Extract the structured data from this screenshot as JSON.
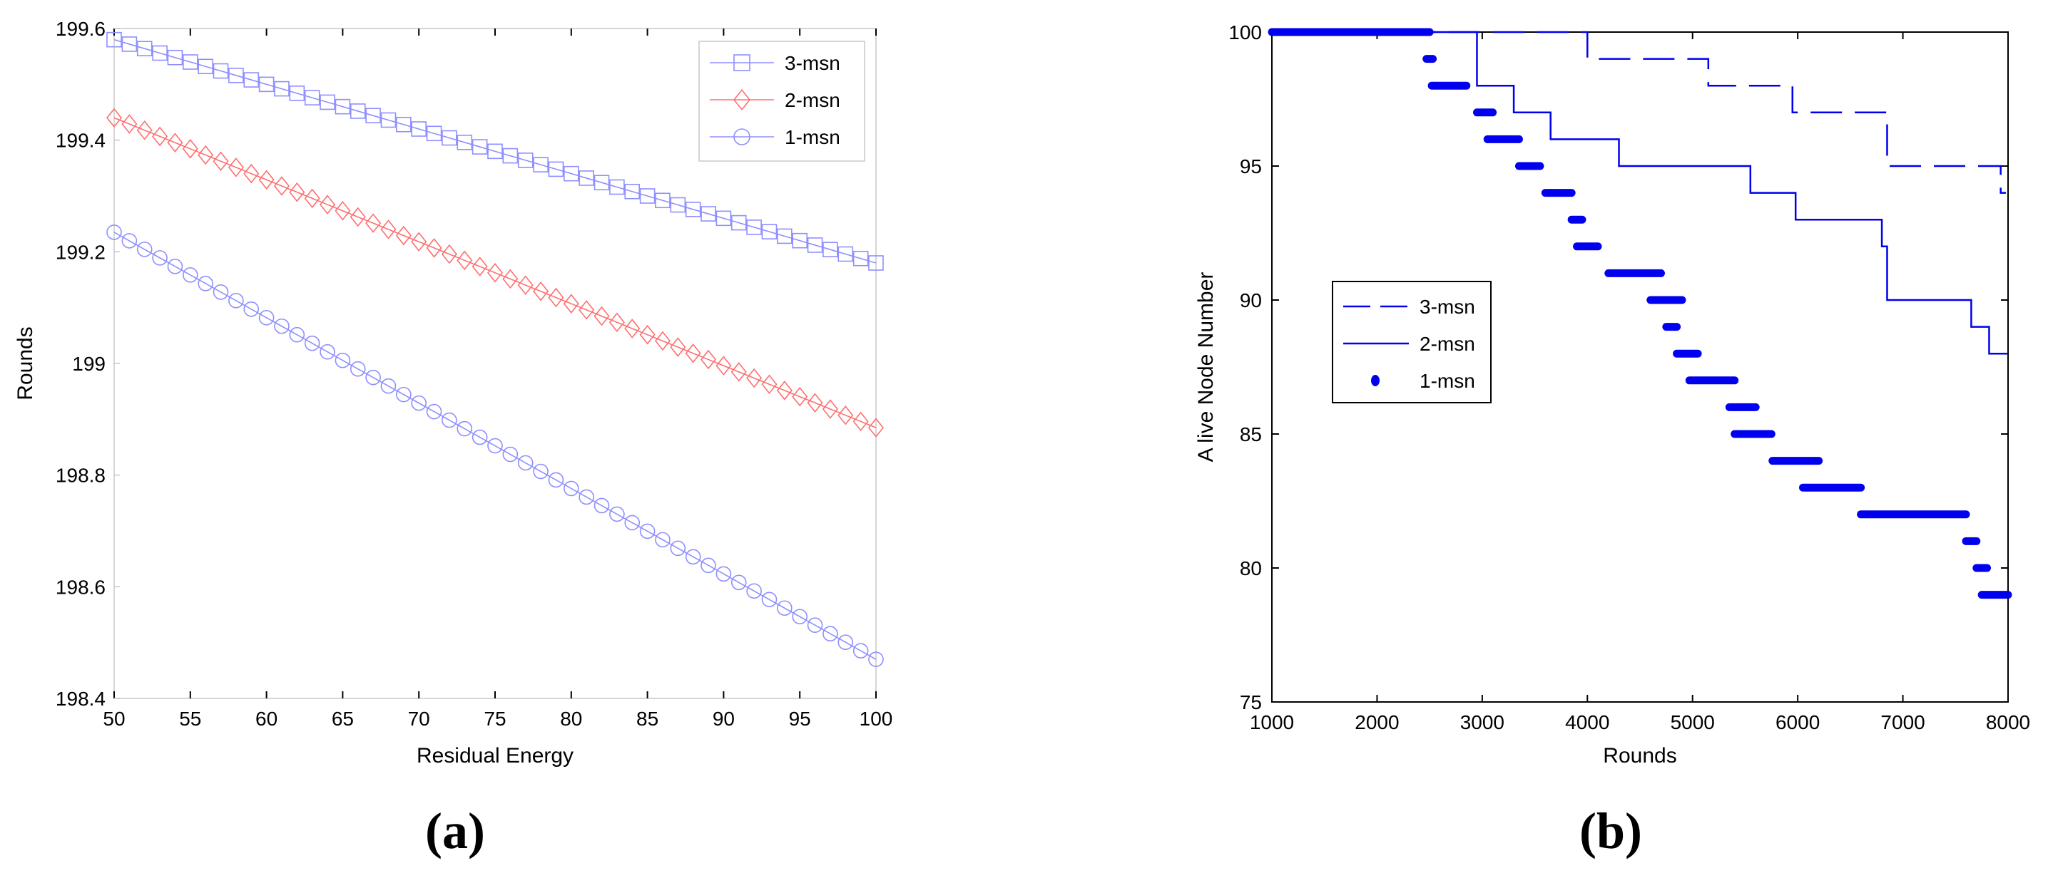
{
  "panel_labels": {
    "a": "a",
    "b": "b"
  },
  "chart_data": [
    {
      "type": "line",
      "xlabel": "Residual Energy",
      "ylabel": "Rounds",
      "xlim": [
        50,
        100
      ],
      "ylim": [
        198.4,
        199.6
      ],
      "xticks": [
        50,
        55,
        60,
        65,
        70,
        75,
        80,
        85,
        90,
        95,
        100
      ],
      "yticks": [
        198.4,
        198.6,
        198.8,
        199,
        199.2,
        199.4,
        199.6
      ],
      "ytick_labels": [
        "198.4",
        "198.6",
        "198.8",
        "199",
        "199.2",
        "199.4",
        "199.6"
      ],
      "legend_position": "top-right",
      "grid": false,
      "series": [
        {
          "name": "3-msn",
          "marker": "square",
          "color": "#8f8fff",
          "x_start": 50,
          "x_end": 100,
          "n_points": 51,
          "y_start": 199.58,
          "y_end": 199.18
        },
        {
          "name": "2-msn",
          "marker": "diamond",
          "color": "#ff6f6f",
          "x_start": 50,
          "x_end": 100,
          "n_points": 51,
          "y_start": 199.44,
          "y_end": 198.885
        },
        {
          "name": "1-msn",
          "marker": "circle",
          "color": "#8f8fff",
          "x_start": 50,
          "x_end": 100,
          "n_points": 51,
          "y_start": 199.235,
          "y_end": 198.47
        }
      ]
    },
    {
      "type": "line",
      "xlabel": "Rounds",
      "ylabel": "A live Node Number",
      "xlim": [
        1000,
        8000
      ],
      "ylim": [
        75,
        100
      ],
      "xticks": [
        1000,
        2000,
        3000,
        4000,
        5000,
        6000,
        7000,
        8000
      ],
      "yticks": [
        75,
        80,
        85,
        90,
        95,
        100
      ],
      "legend_position": "center-left",
      "grid": false,
      "series": [
        {
          "name": "3-msn",
          "style": "dashed",
          "color": "#0000ee",
          "x": [
            1000,
            4000,
            4000,
            5150,
            5150,
            5950,
            5950,
            6850,
            6850,
            7930,
            7930,
            7980
          ],
          "y": [
            100,
            100,
            99,
            99,
            98,
            98,
            97,
            97,
            95,
            95,
            94,
            94
          ]
        },
        {
          "name": "2-msn",
          "style": "solid",
          "color": "#0000ee",
          "x": [
            1000,
            2950,
            2950,
            3300,
            3300,
            3650,
            3650,
            4300,
            4300,
            5550,
            5550,
            5980,
            5980,
            6800,
            6800,
            6850,
            6850,
            7650,
            7650,
            7820,
            7820,
            8000
          ],
          "y": [
            100,
            100,
            98,
            98,
            97,
            97,
            96,
            96,
            95,
            95,
            94,
            94,
            93,
            93,
            92,
            92,
            90,
            90,
            89,
            89,
            88,
            88
          ]
        },
        {
          "name": "1-msn",
          "style": "dots",
          "color": "#0000ee",
          "segments": [
            {
              "x0": 1000,
              "x1": 2500,
              "y": 100
            },
            {
              "x0": 2470,
              "x1": 2530,
              "y": 99
            },
            {
              "x0": 2520,
              "x1": 2850,
              "y": 98
            },
            {
              "x0": 2950,
              "x1": 3100,
              "y": 97
            },
            {
              "x0": 3050,
              "x1": 3350,
              "y": 96
            },
            {
              "x0": 3350,
              "x1": 3550,
              "y": 95
            },
            {
              "x0": 3600,
              "x1": 3850,
              "y": 94
            },
            {
              "x0": 3850,
              "x1": 3950,
              "y": 93
            },
            {
              "x0": 3900,
              "x1": 4100,
              "y": 92
            },
            {
              "x0": 4200,
              "x1": 4700,
              "y": 91
            },
            {
              "x0": 4600,
              "x1": 4900,
              "y": 90
            },
            {
              "x0": 4750,
              "x1": 4850,
              "y": 89
            },
            {
              "x0": 4850,
              "x1": 5050,
              "y": 88
            },
            {
              "x0": 4970,
              "x1": 5400,
              "y": 87
            },
            {
              "x0": 5350,
              "x1": 5600,
              "y": 86
            },
            {
              "x0": 5400,
              "x1": 5750,
              "y": 85
            },
            {
              "x0": 5760,
              "x1": 6200,
              "y": 84
            },
            {
              "x0": 6050,
              "x1": 6600,
              "y": 83
            },
            {
              "x0": 6600,
              "x1": 7600,
              "y": 82
            },
            {
              "x0": 7600,
              "x1": 7700,
              "y": 81
            },
            {
              "x0": 7700,
              "x1": 7800,
              "y": 80
            },
            {
              "x0": 7750,
              "x1": 8000,
              "y": 79
            }
          ]
        }
      ]
    }
  ]
}
